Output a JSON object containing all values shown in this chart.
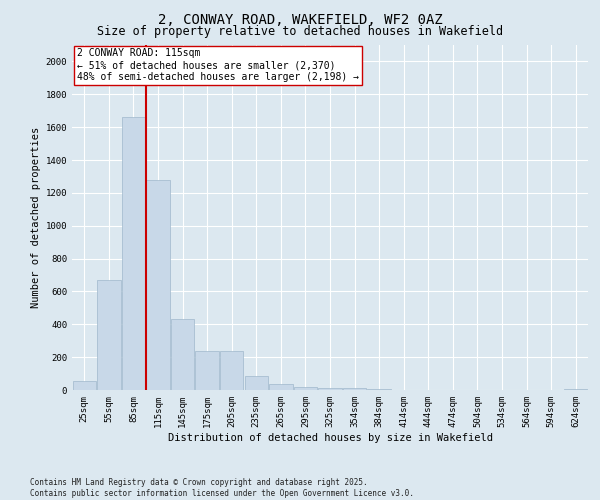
{
  "title": "2, CONWAY ROAD, WAKEFIELD, WF2 0AZ",
  "subtitle": "Size of property relative to detached houses in Wakefield",
  "xlabel": "Distribution of detached houses by size in Wakefield",
  "ylabel": "Number of detached properties",
  "categories": [
    "25sqm",
    "55sqm",
    "85sqm",
    "115sqm",
    "145sqm",
    "175sqm",
    "205sqm",
    "235sqm",
    "265sqm",
    "295sqm",
    "325sqm",
    "354sqm",
    "384sqm",
    "414sqm",
    "444sqm",
    "474sqm",
    "504sqm",
    "534sqm",
    "564sqm",
    "594sqm",
    "624sqm"
  ],
  "values": [
    55,
    670,
    1660,
    1280,
    430,
    240,
    240,
    85,
    35,
    20,
    15,
    12,
    5,
    3,
    2,
    2,
    1,
    0,
    0,
    0,
    5
  ],
  "bar_color": "#c8d8e8",
  "bar_edgecolor": "#a0b8cc",
  "vline_color": "#cc0000",
  "vline_position": 2.5,
  "annotation_text": "2 CONWAY ROAD: 115sqm\n← 51% of detached houses are smaller (2,370)\n48% of semi-detached houses are larger (2,198) →",
  "annotation_box_edgecolor": "#cc0000",
  "annotation_box_facecolor": "#ffffff",
  "ylim": [
    0,
    2100
  ],
  "yticks": [
    0,
    200,
    400,
    600,
    800,
    1000,
    1200,
    1400,
    1600,
    1800,
    2000
  ],
  "footnote": "Contains HM Land Registry data © Crown copyright and database right 2025.\nContains public sector information licensed under the Open Government Licence v3.0.",
  "background_color": "#dce8f0",
  "grid_color": "#ffffff",
  "title_fontsize": 10,
  "subtitle_fontsize": 8.5,
  "axis_label_fontsize": 7.5,
  "tick_fontsize": 6.5,
  "annotation_fontsize": 7,
  "footnote_fontsize": 5.5
}
